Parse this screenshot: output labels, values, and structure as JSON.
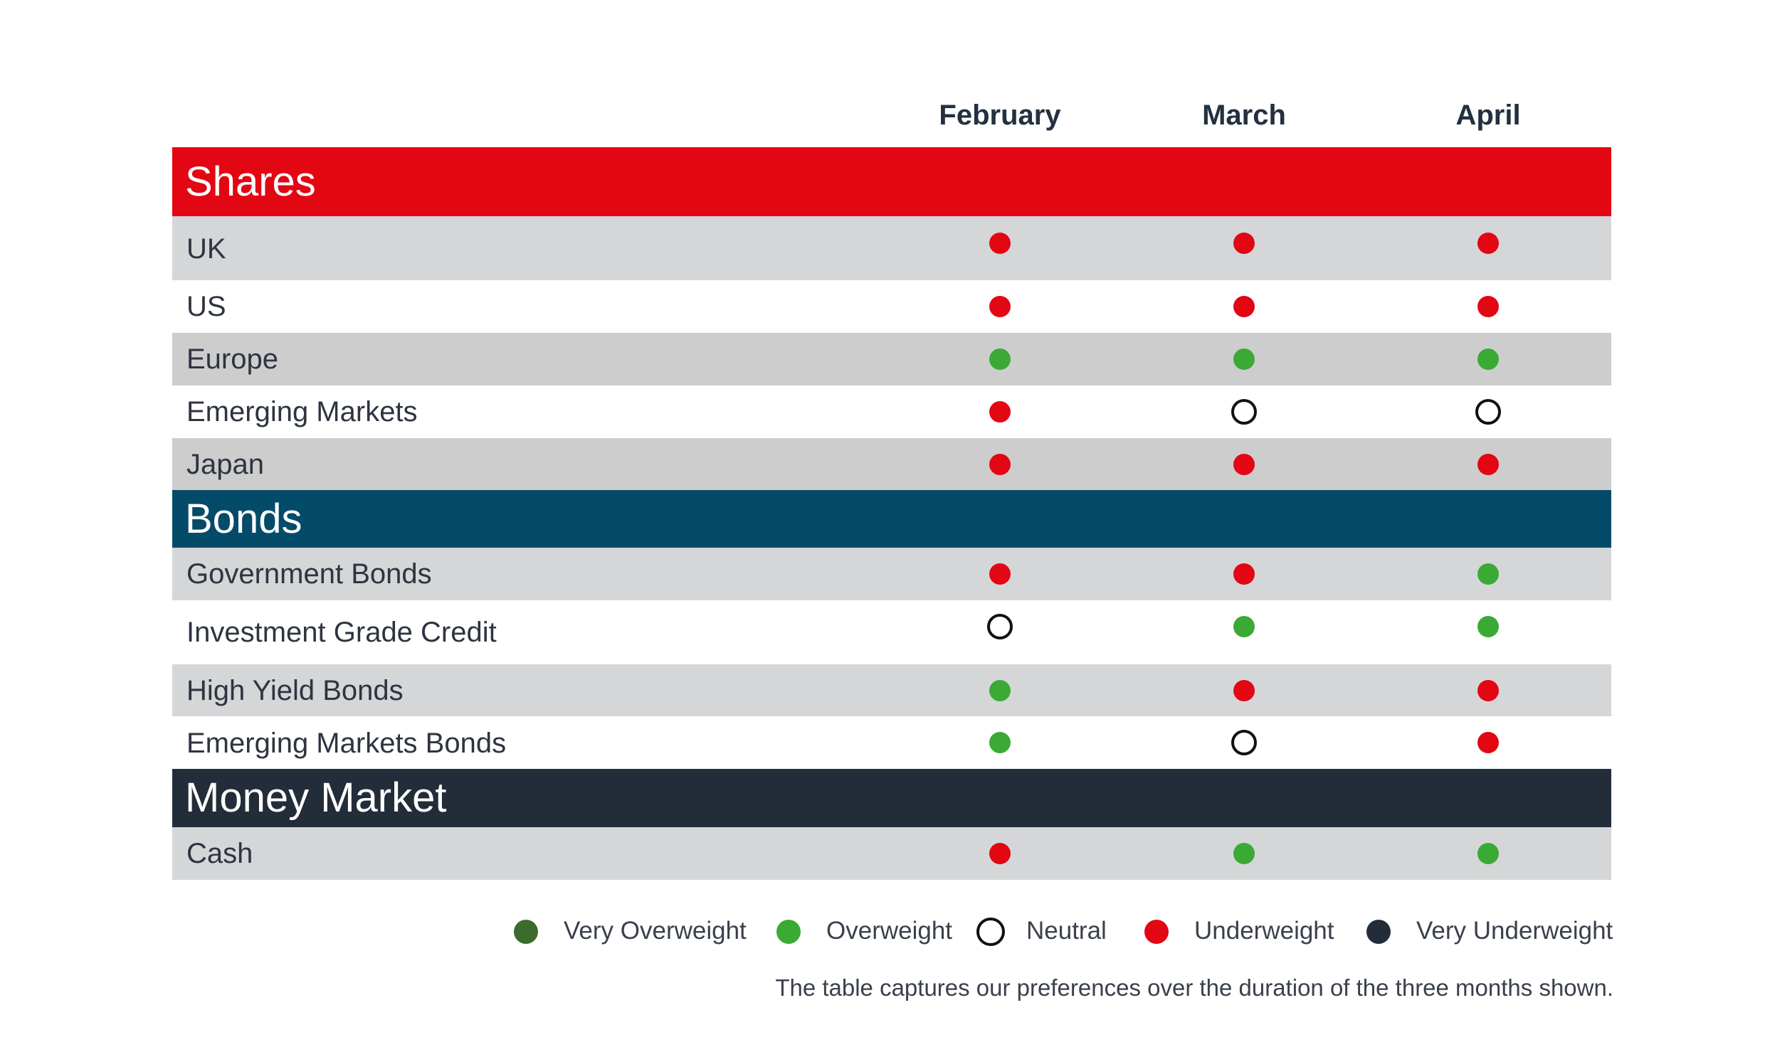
{
  "chart_data": {
    "type": "table",
    "months": [
      "February",
      "March",
      "April"
    ],
    "colors": {
      "shares_header": "#e30613",
      "bonds_header": "#034b69",
      "money_market_header": "#232d39",
      "row_gray": "#d5d6d8",
      "row_gray_dark": "#cdcdce",
      "row_white": "#ffffff"
    },
    "ratings": {
      "very_overweight": {
        "label": "Very Overweight",
        "color": "#3b6b2d"
      },
      "overweight": {
        "label": "Overweight",
        "color": "#3aaa35"
      },
      "neutral": {
        "label": "Neutral",
        "color": "#ffffff"
      },
      "underweight": {
        "label": "Underweight",
        "color": "#e30613"
      },
      "very_underweight": {
        "label": "Very Underweight",
        "color": "#232d39"
      }
    },
    "sections": [
      {
        "name": "Shares",
        "rows": [
          {
            "name": "UK",
            "values": [
              "underweight",
              "underweight",
              "underweight"
            ]
          },
          {
            "name": "US",
            "values": [
              "underweight",
              "underweight",
              "underweight"
            ]
          },
          {
            "name": "Europe",
            "values": [
              "overweight",
              "overweight",
              "overweight"
            ]
          },
          {
            "name": "Emerging Markets",
            "values": [
              "underweight",
              "neutral",
              "neutral"
            ]
          },
          {
            "name": "Japan",
            "values": [
              "underweight",
              "underweight",
              "underweight"
            ]
          }
        ]
      },
      {
        "name": "Bonds",
        "rows": [
          {
            "name": "Government Bonds",
            "values": [
              "underweight",
              "underweight",
              "overweight"
            ]
          },
          {
            "name": "Investment Grade Credit",
            "values": [
              "neutral",
              "overweight",
              "overweight"
            ]
          },
          {
            "name": "High Yield Bonds",
            "values": [
              "overweight",
              "underweight",
              "underweight"
            ]
          },
          {
            "name": "Emerging Markets Bonds",
            "values": [
              "overweight",
              "neutral",
              "underweight"
            ]
          }
        ]
      },
      {
        "name": "Money Market",
        "rows": [
          {
            "name": "Cash",
            "values": [
              "underweight",
              "overweight",
              "overweight"
            ]
          }
        ]
      }
    ],
    "legend_order": [
      "very_overweight",
      "overweight",
      "neutral",
      "underweight",
      "very_underweight"
    ]
  },
  "footnote": "The table captures our preferences over the duration of the three months shown."
}
